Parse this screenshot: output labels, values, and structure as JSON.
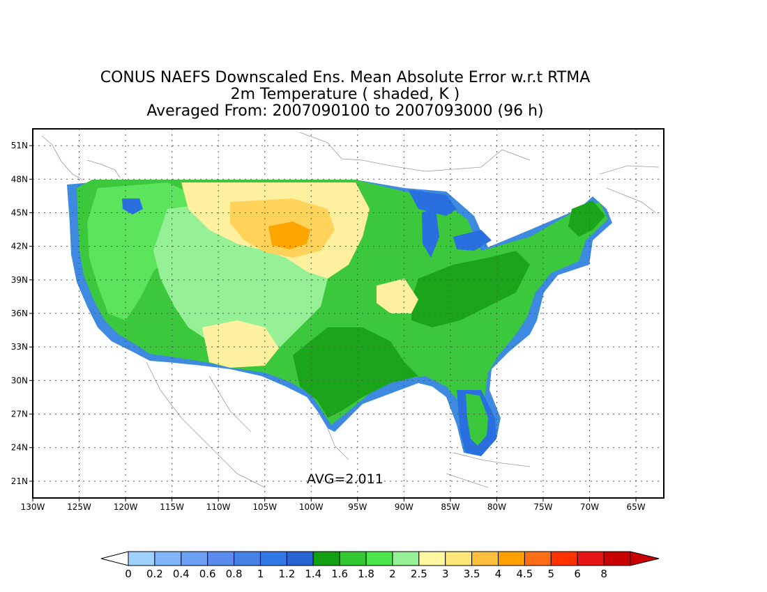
{
  "title": {
    "line1": "CONUS NAEFS Downscaled Ens. Mean Absolute Error w.r.t RTMA",
    "line2": "2m Temperature ( shaded, K )",
    "line3": "Averaged From: 2007090100 to 2007093000 (96 h)"
  },
  "annotation": {
    "avg": "AVG=2.011"
  },
  "map": {
    "lon_range": [
      -130,
      -62
    ],
    "lat_range": [
      19.5,
      52.5
    ],
    "lon_ticks": [
      {
        "value": -130,
        "label": "130W"
      },
      {
        "value": -125,
        "label": "125W"
      },
      {
        "value": -120,
        "label": "120W"
      },
      {
        "value": -115,
        "label": "115W"
      },
      {
        "value": -110,
        "label": "110W"
      },
      {
        "value": -105,
        "label": "105W"
      },
      {
        "value": -100,
        "label": "100W"
      },
      {
        "value": -95,
        "label": "95W"
      },
      {
        "value": -90,
        "label": "90W"
      },
      {
        "value": -85,
        "label": "85W"
      },
      {
        "value": -80,
        "label": "80W"
      },
      {
        "value": -75,
        "label": "75W"
      },
      {
        "value": -70,
        "label": "70W"
      },
      {
        "value": -65,
        "label": "65W"
      }
    ],
    "lat_ticks": [
      {
        "value": 21,
        "label": "21N"
      },
      {
        "value": 24,
        "label": "24N"
      },
      {
        "value": 27,
        "label": "27N"
      },
      {
        "value": 30,
        "label": "30N"
      },
      {
        "value": 33,
        "label": "33N"
      },
      {
        "value": 36,
        "label": "36N"
      },
      {
        "value": 39,
        "label": "39N"
      },
      {
        "value": 42,
        "label": "42N"
      },
      {
        "value": 45,
        "label": "45N"
      },
      {
        "value": 48,
        "label": "48N"
      },
      {
        "value": 51,
        "label": "51N"
      }
    ],
    "grid": true,
    "colors": {
      "blue_low": "#3d8ae0",
      "blue_mid": "#2a6fe0",
      "green_dark": "#1aa51a",
      "green": "#3cc83c",
      "green_light": "#5ce45c",
      "green_pale": "#96f096",
      "yellow_pale": "#fff0a0",
      "yellow": "#ffd25a",
      "orange": "#ffa500"
    }
  },
  "colorbar": {
    "labels": [
      "0",
      "0.2",
      "0.4",
      "0.6",
      "0.8",
      "1",
      "1.2",
      "1.4",
      "1.6",
      "1.8",
      "2",
      "2.5",
      "3",
      "3.5",
      "4",
      "4.5",
      "5",
      "6",
      "8"
    ],
    "colors": [
      "#a0d2ff",
      "#82b4fa",
      "#6ea0f5",
      "#5a8cf0",
      "#4682e6",
      "#3278e6",
      "#2864d2",
      "#11a011",
      "#32c832",
      "#4be64b",
      "#96f096",
      "#fff8a0",
      "#ffe678",
      "#ffbe3c",
      "#ffa000",
      "#ff6e14",
      "#ff3200",
      "#e61414",
      "#c80000"
    ],
    "under_color": "#ffffff",
    "over_color": "#c80000"
  }
}
